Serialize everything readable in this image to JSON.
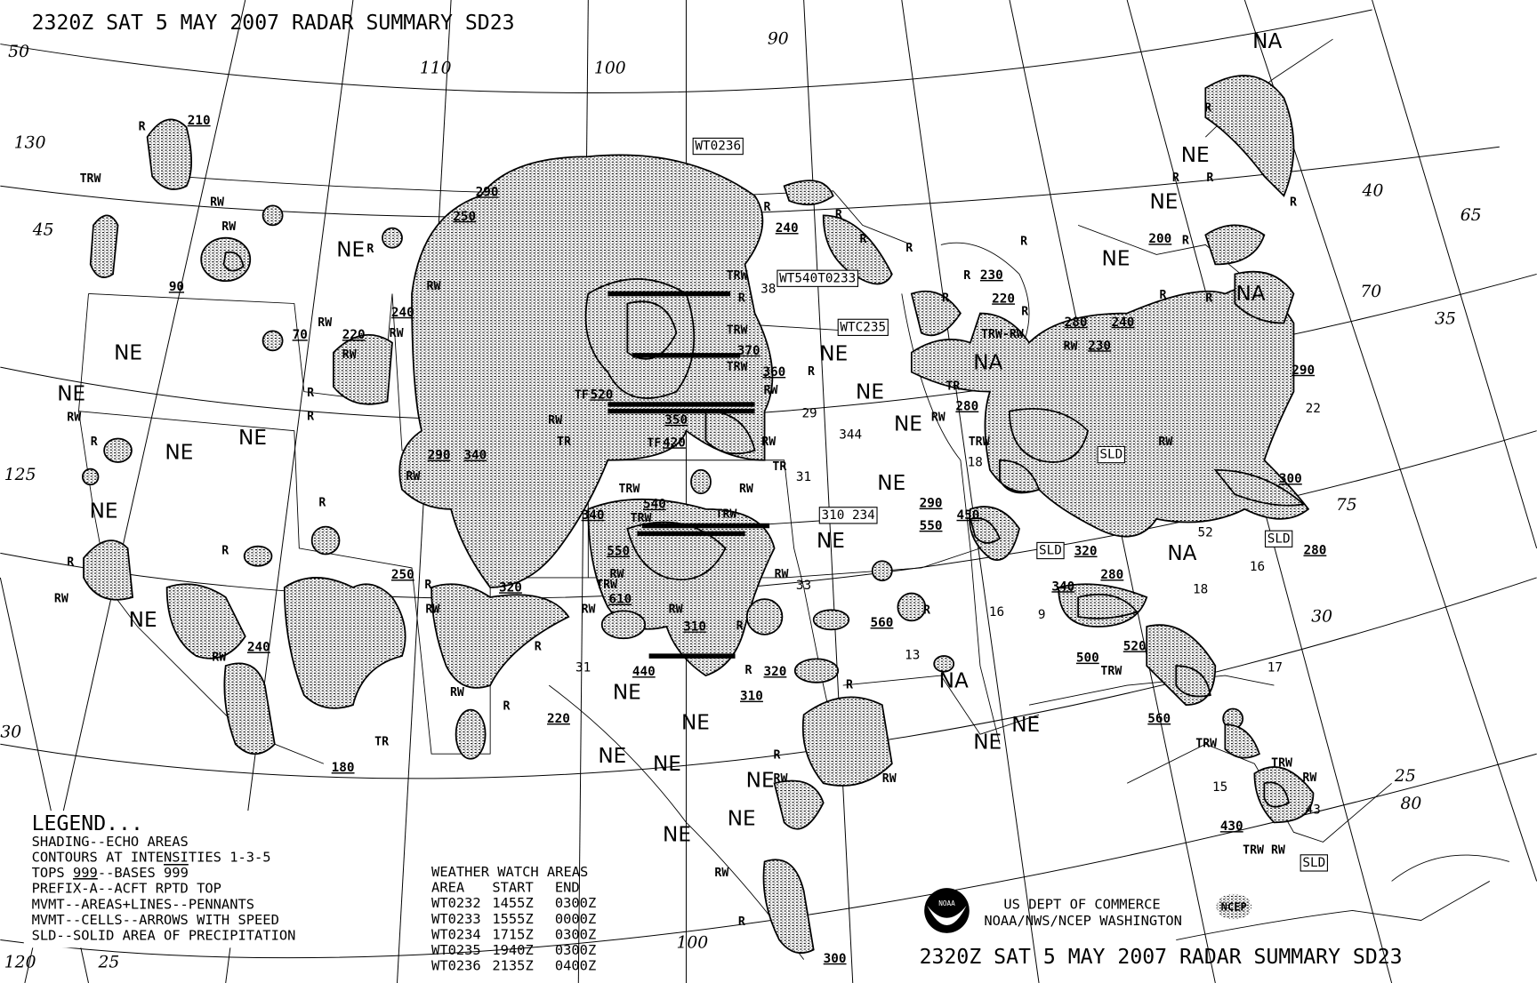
{
  "header": {
    "title": "2320Z SAT  5 MAY 2007 RADAR SUMMARY SD23"
  },
  "footer": {
    "title": "2320Z SAT  5 MAY 2007 RADAR SUMMARY SD23",
    "agency_line1": "US DEPT OF COMMERCE",
    "agency_line2": "NOAA/NWS/NCEP WASHINGTON",
    "noaa_logo_text": "NOAA",
    "ncep_logo_text": "NCEP"
  },
  "legend": {
    "heading": "LEGEND...",
    "lines": [
      "SHADING--ECHO AREAS",
      "CONTOURS AT INTENSITIES 1-3-5"
    ],
    "tops_prefix": "TOPS ",
    "tops_value": "999",
    "bases_prefix": "--BASES ",
    "bases_value": "999",
    "lines2": [
      "PREFIX-A--ACFT RPTD TOP",
      "MVMT--AREAS+LINES--PENNANTS",
      "MVMT--CELLS--ARROWS WITH SPEED",
      "SLD--SOLID AREA OF PRECIPITATION"
    ]
  },
  "watch_table": {
    "heading": "WEATHER WATCH AREAS",
    "columns": [
      "AREA",
      "START",
      "END"
    ],
    "rows": [
      [
        "WT0232",
        "1455Z",
        "0300Z"
      ],
      [
        "WT0233",
        "1555Z",
        "0000Z"
      ],
      [
        "WT0234",
        "1715Z",
        "0300Z"
      ],
      [
        "WT0235",
        "1940Z",
        "0300Z"
      ],
      [
        "WT0236",
        "2135Z",
        "0400Z"
      ]
    ]
  },
  "map": {
    "region_labels": [
      "NE",
      "NE",
      "NE",
      "NE",
      "NE",
      "NE",
      "NE",
      "NE",
      "NE",
      "NE",
      "NE",
      "NE",
      "NE",
      "NE",
      "NE",
      "NE",
      "NE",
      "NE",
      "NE",
      "NE",
      "NE",
      "NE",
      "NE",
      "NE",
      "NA",
      "NA",
      "NA",
      "NA",
      "NA"
    ],
    "tops": [
      "210",
      "290",
      "250",
      "240",
      "90",
      "240",
      "220",
      "70",
      "370",
      "360",
      "520",
      "350",
      "420",
      "290",
      "340",
      "540",
      "340",
      "550",
      "250",
      "320",
      "610",
      "310",
      "440",
      "320",
      "310",
      "220",
      "180",
      "240",
      "560",
      "290",
      "550",
      "450",
      "320",
      "280",
      "340",
      "500",
      "520",
      "560",
      "430",
      "300",
      "230",
      "220",
      "280",
      "240",
      "230",
      "200",
      "290",
      "300",
      "280",
      "280"
    ],
    "boxed_labels": [
      "WT0236",
      "WT540T0233",
      "WTC235",
      "310 234",
      "SLD",
      "SLD",
      "SLD",
      "SLD"
    ],
    "precip_types": [
      "TRW",
      "RW",
      "RW",
      "R",
      "RW",
      "RW",
      "RW",
      "RW",
      "RW",
      "R",
      "R",
      "R",
      "RW",
      "R",
      "R",
      "RW",
      "R",
      "RW",
      "RW",
      "RW",
      "TR",
      "R",
      "R",
      "R",
      "TRW",
      "R",
      "TRW",
      "TRW",
      "RW",
      "R",
      "RW",
      "TR",
      "RW",
      "TRW",
      "RW",
      "TRW",
      "TRW",
      "RW",
      "TRW",
      "RW",
      "RW",
      "R",
      "RW",
      "TR",
      "R",
      "R",
      "R",
      "R",
      "R",
      "R",
      "R",
      "R",
      "R",
      "TRW-RW",
      "RW",
      "R",
      "R",
      "R",
      "R",
      "R",
      "R",
      "R",
      "R",
      "RW",
      "TR",
      "TRW",
      "RW",
      "TRW",
      "TRW",
      "TRW",
      "RW",
      "TRW RW",
      "RW",
      "R",
      "R",
      "RW",
      "RW",
      "R",
      "TF",
      "TF",
      "R"
    ],
    "cell_speeds": [
      "38",
      "29",
      "31",
      "344",
      "33",
      "31",
      "13",
      "18",
      "16",
      "9",
      "18",
      "16",
      "17",
      "22",
      "15",
      "43",
      "52"
    ],
    "grid_labels": [
      "50",
      "130",
      "45",
      "125",
      "30",
      "120",
      "25",
      "110",
      "100",
      "90",
      "100",
      "40",
      "65",
      "70",
      "35",
      "75",
      "30",
      "25",
      "80"
    ]
  },
  "colors": {
    "ink": "#000000",
    "background": "#ffffff"
  }
}
